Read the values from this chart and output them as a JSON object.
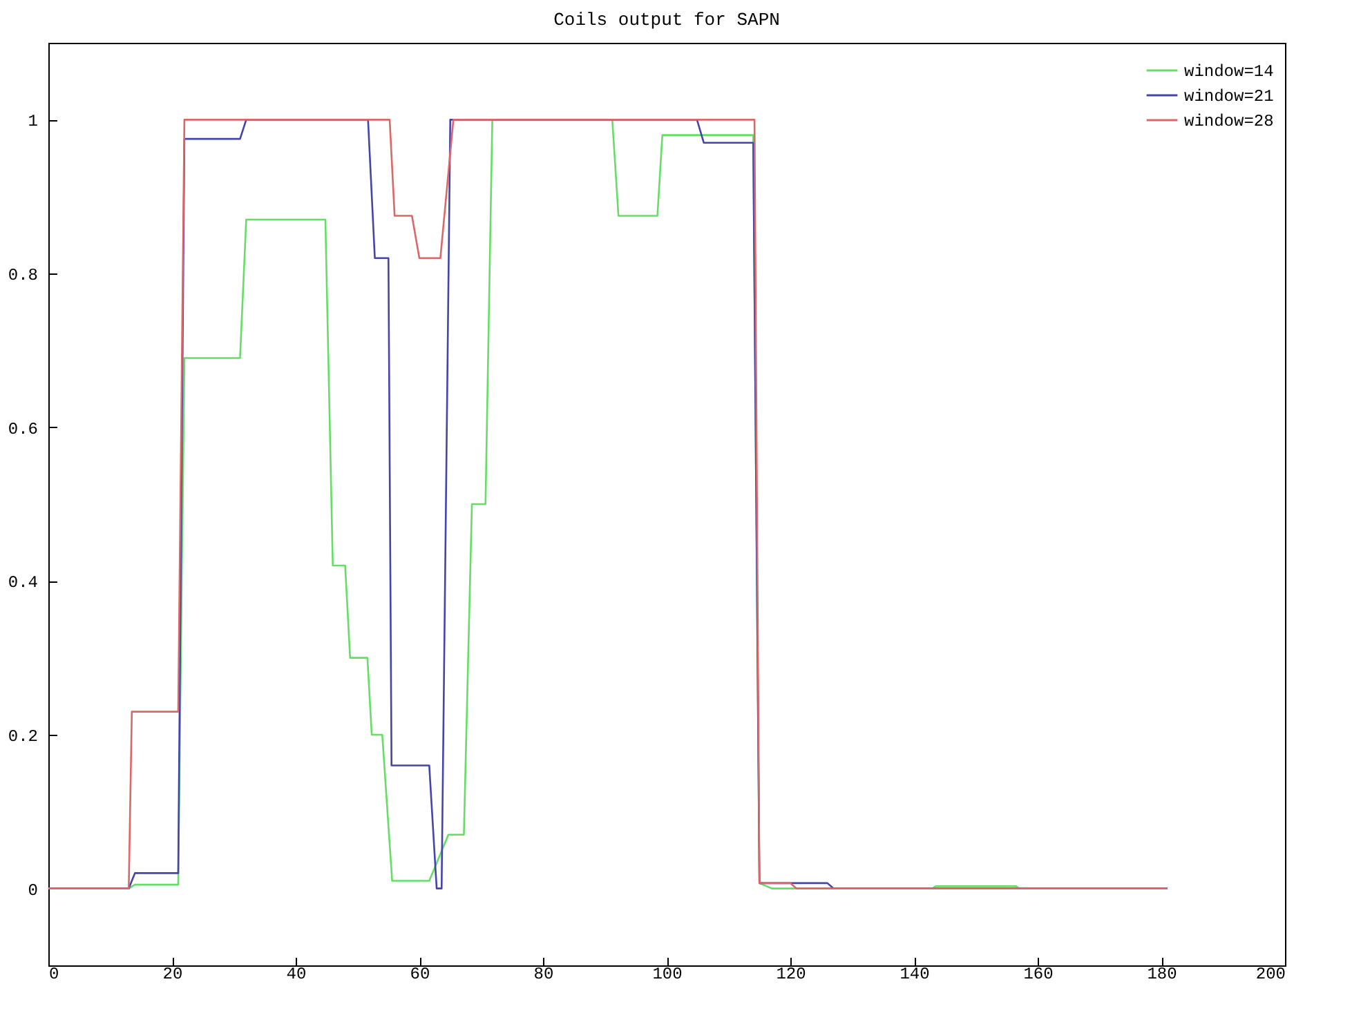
{
  "chart_data": {
    "type": "line",
    "title": "Coils output for SAPN",
    "xlim": [
      0,
      200
    ],
    "xticks": [
      0,
      20,
      40,
      60,
      80,
      100,
      120,
      140,
      160,
      180,
      200
    ],
    "ylim": [
      -0.1,
      1.1
    ],
    "yticks": [
      0,
      0.2,
      0.4,
      0.6,
      0.8,
      1
    ],
    "legend": "top right",
    "grid": false,
    "line_style": "solid",
    "marker": "none",
    "series": [
      {
        "name": "window=14",
        "color": "#66dd66",
        "x": [
          0,
          13,
          14,
          21,
          22,
          31,
          32,
          44.8,
          46,
          48,
          48.8,
          51.6,
          52.3,
          54,
          55.6,
          61.6,
          64.7,
          67.2,
          68.5,
          70.7,
          71.8,
          91.2,
          92.2,
          98.5,
          99.3,
          114,
          115,
          117,
          143,
          143.5,
          156.5,
          157,
          181
        ],
        "values": [
          0,
          0,
          0.005,
          0.005,
          0.69,
          0.69,
          0.87,
          0.87,
          0.42,
          0.42,
          0.3,
          0.3,
          0.2,
          0.2,
          0.01,
          0.01,
          0.07,
          0.07,
          0.5,
          0.5,
          1,
          1,
          0.875,
          0.875,
          0.98,
          0.98,
          0.007,
          0,
          0,
          0.003,
          0.003,
          0,
          0
        ]
      },
      {
        "name": "window=21",
        "color": "#4444aa",
        "x": [
          0,
          13,
          14,
          21,
          22,
          31,
          32,
          51.7,
          52.8,
          55,
          55.5,
          61.6,
          62.8,
          63.6,
          65,
          104.9,
          106,
          114,
          115,
          126,
          127,
          181
        ],
        "values": [
          0,
          0,
          0.02,
          0.02,
          0.975,
          0.975,
          1,
          1,
          0.82,
          0.82,
          0.16,
          0.16,
          0,
          0,
          1,
          1,
          0.97,
          0.97,
          0.007,
          0.007,
          0,
          0
        ]
      },
      {
        "name": "window=28",
        "color": "#dd6666",
        "x": [
          0,
          13,
          13.5,
          21,
          22,
          55.2,
          56,
          58.8,
          60,
          63.4,
          65.5,
          114.2,
          115,
          120,
          121,
          181
        ],
        "values": [
          0,
          0,
          0.23,
          0.23,
          1,
          1,
          0.875,
          0.875,
          0.82,
          0.82,
          1,
          1,
          0.007,
          0.007,
          0,
          0
        ]
      }
    ]
  }
}
